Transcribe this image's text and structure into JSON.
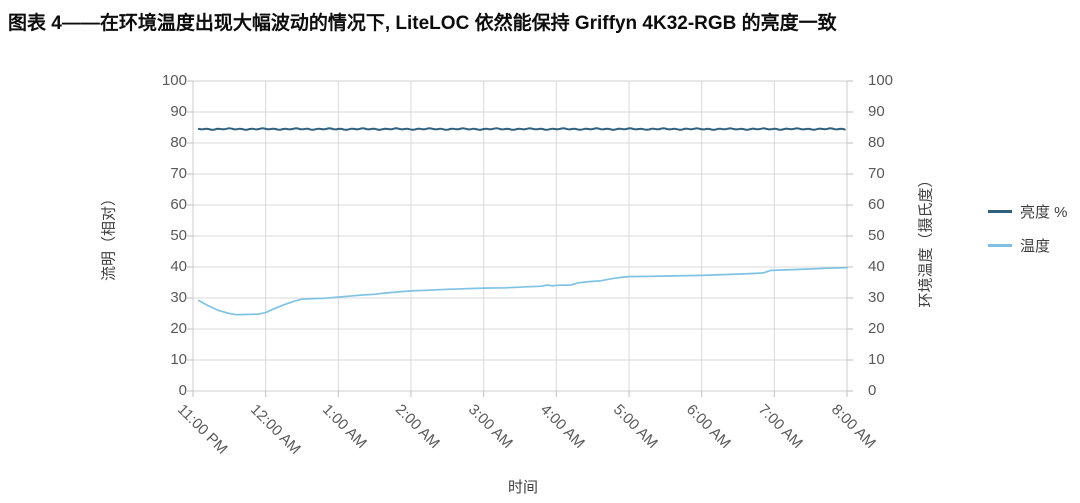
{
  "title": "图表 4——在环境温度出现大幅波动的情况下, LiteLOC 依然能保持 Griffyn 4K32-RGB 的亮度一致",
  "axes": {
    "left_title": "流明（相对）",
    "right_title": "环境温度（摄氏度）",
    "x_title": "时间",
    "y_tick_labels": [
      "0",
      "10",
      "20",
      "30",
      "40",
      "50",
      "60",
      "70",
      "80",
      "90",
      "100"
    ],
    "x_tick_labels": [
      "11:00 PM",
      "12:00 AM",
      "1:00 AM",
      "2:00 AM",
      "3:00 AM",
      "4:00 AM",
      "5:00 AM",
      "6:00 AM",
      "7:00 AM",
      "8:00 AM"
    ]
  },
  "legend": {
    "position": "right",
    "items": [
      {
        "label": "亮度 %",
        "color": "#2f617e"
      },
      {
        "label": "温度",
        "color": "#7fc3e4"
      }
    ]
  },
  "colors": {
    "grid": "#d9d9d9",
    "plot_border": "#cfcfcf",
    "tick": "#bfbfbf",
    "tick_text": "#595959",
    "axis_title_text": "#404040",
    "title_text": "#0d0d0d",
    "background": "#ffffff"
  },
  "chart_data": {
    "type": "line",
    "title": "图表 4——在环境温度出现大幅波动的情况下, LiteLOC 依然能保持 Griffyn 4K32-RGB 的亮度一致",
    "grid": true,
    "legend_position": "right",
    "xlabel": "时间",
    "x_tick_labels": [
      "11:00 PM",
      "12:00 AM",
      "1:00 AM",
      "2:00 AM",
      "3:00 AM",
      "4:00 AM",
      "5:00 AM",
      "6:00 AM",
      "7:00 AM",
      "8:00 AM"
    ],
    "x_unit": "hours_since_11pm",
    "x_range": [
      0,
      9
    ],
    "y_axis_left": {
      "label": "流明（相对）",
      "range": [
        0,
        100
      ],
      "tick_step": 10
    },
    "y_axis_right": {
      "label": "环境温度（摄氏度）",
      "range": [
        0,
        100
      ],
      "tick_step": 10
    },
    "series": [
      {
        "name": "亮度 %",
        "axis": "left",
        "color": "#2f617e",
        "x_hours": [
          0.08,
          1,
          2,
          3,
          4,
          5,
          6,
          7,
          8,
          9
        ],
        "values": [
          84.5,
          84.5,
          84.5,
          84.5,
          84.5,
          84.5,
          84.5,
          84.5,
          84.5,
          84.5
        ]
      },
      {
        "name": "温度",
        "axis": "right",
        "color": "#7fc3e4",
        "x_hours": [
          0.08,
          0.2,
          0.35,
          0.5,
          0.6,
          0.75,
          0.9,
          1.0,
          1.1,
          1.25,
          1.4,
          1.5,
          1.65,
          1.8,
          2.0,
          2.2,
          2.35,
          2.5,
          2.6,
          2.75,
          3.0,
          3.2,
          3.5,
          3.75,
          4.0,
          4.3,
          4.6,
          4.8,
          4.88,
          4.95,
          5.0,
          5.2,
          5.3,
          5.45,
          5.6,
          5.8,
          5.95,
          6.0,
          6.3,
          6.5,
          7.0,
          7.4,
          7.7,
          7.85,
          7.95,
          8.05,
          8.3,
          8.5,
          8.75,
          9.0
        ],
        "values": [
          29.2,
          27.6,
          26.0,
          25.0,
          24.6,
          24.7,
          24.8,
          25.3,
          26.4,
          27.8,
          29.0,
          29.6,
          29.8,
          29.9,
          30.3,
          30.7,
          31.0,
          31.2,
          31.5,
          31.8,
          32.3,
          32.5,
          32.8,
          33.0,
          33.2,
          33.3,
          33.6,
          33.8,
          34.2,
          33.9,
          34.1,
          34.2,
          34.9,
          35.3,
          35.5,
          36.4,
          36.8,
          36.9,
          37.0,
          37.1,
          37.3,
          37.6,
          37.9,
          38.1,
          38.9,
          39.0,
          39.2,
          39.4,
          39.6,
          39.8
        ]
      }
    ]
  }
}
